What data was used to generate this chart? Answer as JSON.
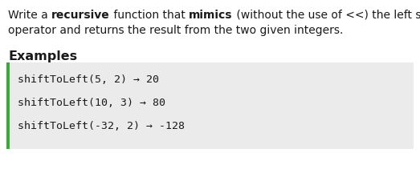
{
  "bg_color": "#ffffff",
  "code_bg_color": "#ebebeb",
  "accent_color": "#3aaa35",
  "title_line1_parts": [
    {
      "text": "Write a ",
      "bold": false
    },
    {
      "text": "recursive",
      "bold": true
    },
    {
      "text": " function that ",
      "bold": false
    },
    {
      "text": "mimics",
      "bold": true
    },
    {
      "text": " (without the use of <<) the left shift",
      "bold": false
    }
  ],
  "title_line2": "operator and returns the result from the two given integers.",
  "section_header": "Examples",
  "examples": [
    "shiftToLeft(5, 2) → 20",
    "shiftToLeft(10, 3) → 80",
    "shiftToLeft(-32, 2) → -128"
  ],
  "font_size_body": 10.0,
  "font_size_header": 11.5,
  "font_size_code": 9.5
}
